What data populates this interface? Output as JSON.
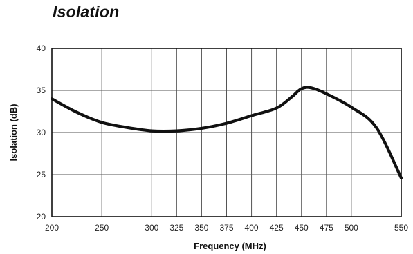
{
  "chart_data": {
    "type": "line",
    "title": "Isolation",
    "xlabel": "Frequency (MHz)",
    "ylabel": "Isolation (dB)",
    "xlim": [
      200,
      550
    ],
    "ylim": [
      20,
      40
    ],
    "x_ticks": [
      200,
      250,
      300,
      325,
      350,
      375,
      400,
      425,
      450,
      475,
      500,
      550
    ],
    "x_tick_labels": [
      "200",
      "250",
      "300",
      "325",
      "350",
      "375",
      "400",
      "425",
      "450",
      "475",
      "500",
      "550"
    ],
    "y_ticks": [
      20,
      25,
      30,
      35,
      40
    ],
    "y_tick_labels": [
      "20",
      "25",
      "30",
      "35",
      "40"
    ],
    "grid": true,
    "legend": "none",
    "series": [
      {
        "x": [
          200,
          225,
          250,
          275,
          300,
          325,
          350,
          375,
          400,
          425,
          440,
          450,
          460,
          475,
          500,
          525,
          550
        ],
        "y": [
          34.0,
          32.4,
          31.2,
          30.6,
          30.2,
          30.2,
          30.5,
          31.1,
          32.0,
          32.9,
          34.2,
          35.2,
          35.3,
          34.6,
          33.0,
          30.6,
          24.6
        ],
        "color": "#111111"
      }
    ]
  }
}
